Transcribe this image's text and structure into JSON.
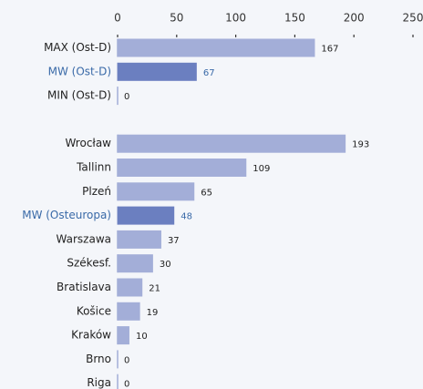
{
  "chart_data": {
    "type": "hbar",
    "categories": [
      "MAX (Ost-D)",
      "MW (Ost-D)",
      "MIN (Ost-D)",
      null,
      "Wrocław",
      "Tallinn",
      "Plzeń",
      "MW (Osteuropa)",
      "Warszawa",
      "Székesf.",
      "Bratislava",
      "Košice",
      "Kraków",
      "Brno",
      "Riga"
    ],
    "values": [
      167,
      67,
      0,
      null,
      193,
      109,
      65,
      48,
      37,
      30,
      21,
      19,
      10,
      0,
      0
    ],
    "colors": [
      "#a3aed8",
      "#6b7fc0",
      "#a3aed8",
      null,
      "#a3aed8",
      "#a3aed8",
      "#a3aed8",
      "#6b7fc0",
      "#a3aed8",
      "#a3aed8",
      "#a3aed8",
      "#a3aed8",
      "#a3aed8",
      "#a3aed8",
      "#a3aed8"
    ],
    "label_colors": [
      "#222222",
      "#3a6aa8",
      "#222222",
      null,
      "#222222",
      "#222222",
      "#222222",
      "#3a6aa8",
      "#222222",
      "#222222",
      "#222222",
      "#222222",
      "#222222",
      "#222222",
      "#222222"
    ],
    "xlim": [
      0,
      250
    ],
    "xticks": [
      0,
      50,
      100,
      150,
      200,
      250
    ]
  }
}
